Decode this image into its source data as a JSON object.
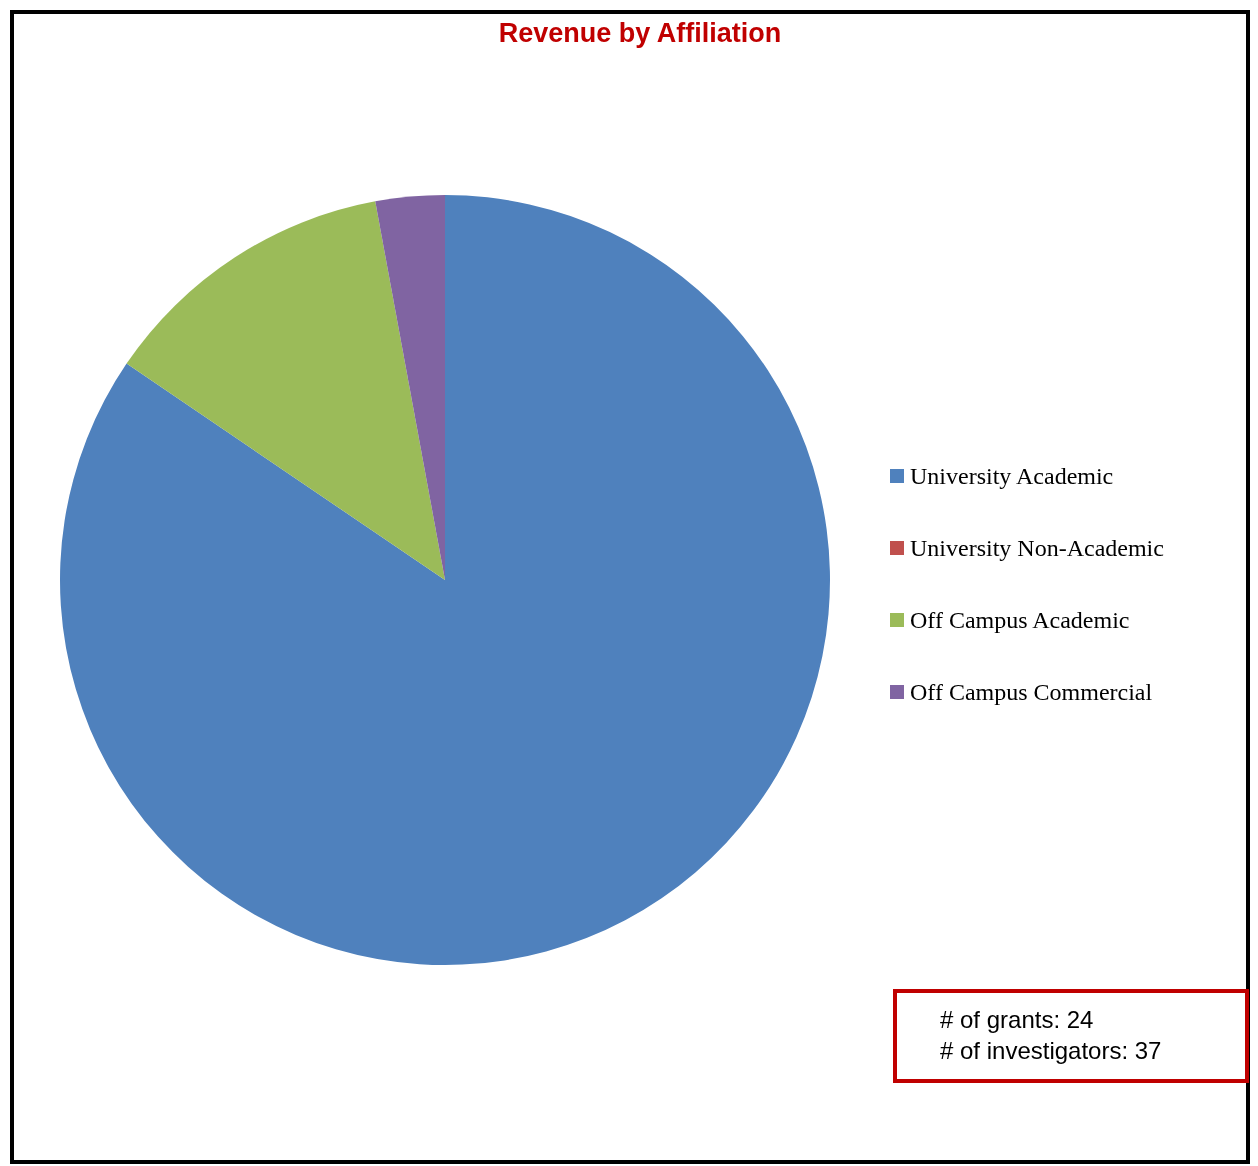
{
  "chart_data": {
    "type": "pie",
    "title": "Revenue by Affiliation",
    "categories": [
      "University Academic",
      "University Non-Academic",
      "Off Campus Academic",
      "Off Campus Commercial"
    ],
    "values": [
      84.5,
      0,
      12.6,
      2.9
    ],
    "colors": [
      "#4f81bd",
      "#c0504d",
      "#9bbb59",
      "#8064a2"
    ],
    "legend": "right",
    "annotations": [
      "# of grants:  24",
      "# of investigators:  37"
    ]
  }
}
